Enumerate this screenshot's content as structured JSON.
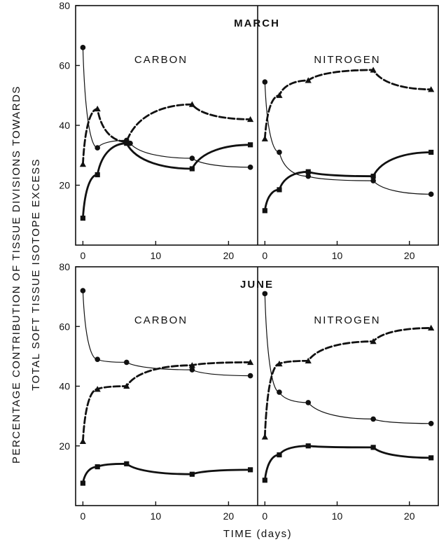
{
  "ylabel_line1": "PERCENTAGE CONTRIBUTION OF TISSUE DIVISIONS TOWARDS",
  "ylabel_line2": "TOTAL SOFT TISSUE ISOTOPE EXCESS",
  "xlabel": "TIME (days)",
  "chart_data": [
    {
      "type": "scatter",
      "title": "MARCH",
      "subtitle": "CARBON",
      "xlabel": "TIME (days)",
      "ylabel": "PERCENTAGE CONTRIBUTION OF TISSUE DIVISIONS TOWARDS TOTAL SOFT TISSUE ISOTOPE EXCESS",
      "xlim": [
        -1,
        24
      ],
      "ylim": [
        0,
        80
      ],
      "x_ticks": [
        0,
        10,
        20
      ],
      "y_ticks": [
        20,
        40,
        60,
        80
      ],
      "series": [
        {
          "marker": "triangle",
          "x": [
            0,
            2,
            6,
            15,
            23
          ],
          "y": [
            27,
            45.5,
            34.5,
            47,
            42
          ]
        },
        {
          "marker": "circle",
          "x": [
            0,
            2,
            6,
            6.5,
            15,
            23
          ],
          "y": [
            66,
            32.5,
            35,
            34,
            29,
            26
          ]
        },
        {
          "marker": "square",
          "x": [
            0,
            2,
            6,
            15,
            23
          ],
          "y": [
            9,
            23.5,
            34,
            25.5,
            33.5
          ]
        }
      ]
    },
    {
      "type": "scatter",
      "title": "MARCH",
      "subtitle": "NITROGEN",
      "xlim": [
        -1,
        24
      ],
      "ylim": [
        0,
        80
      ],
      "x_ticks": [
        0,
        10,
        20
      ],
      "y_ticks": [
        20,
        40,
        60,
        80
      ],
      "series": [
        {
          "marker": "triangle",
          "x": [
            0,
            2,
            6,
            15,
            23
          ],
          "y": [
            35.5,
            50,
            55,
            58.5,
            52
          ]
        },
        {
          "marker": "circle",
          "x": [
            0,
            2,
            6,
            15,
            23
          ],
          "y": [
            54.5,
            31,
            23,
            21.5,
            17
          ]
        },
        {
          "marker": "square",
          "x": [
            0,
            2,
            6,
            15,
            23
          ],
          "y": [
            11.5,
            18.5,
            24.5,
            23,
            31
          ]
        }
      ]
    },
    {
      "type": "scatter",
      "title": "JUNE",
      "subtitle": "CARBON",
      "xlim": [
        -1,
        24
      ],
      "ylim": [
        0,
        80
      ],
      "x_ticks": [
        0,
        10,
        20
      ],
      "y_ticks": [
        20,
        40,
        60,
        80
      ],
      "series": [
        {
          "marker": "triangle",
          "x": [
            0,
            2,
            6,
            15,
            23
          ],
          "y": [
            21.5,
            39,
            40,
            47,
            48
          ]
        },
        {
          "marker": "circle",
          "x": [
            0,
            2,
            6,
            15,
            23
          ],
          "y": [
            72,
            49,
            48,
            45.5,
            43.5
          ]
        },
        {
          "marker": "square",
          "x": [
            0,
            2,
            6,
            15,
            23
          ],
          "y": [
            7.5,
            13,
            14,
            10.5,
            12
          ]
        }
      ]
    },
    {
      "type": "scatter",
      "title": "JUNE",
      "subtitle": "NITROGEN",
      "xlim": [
        -1,
        24
      ],
      "ylim": [
        0,
        80
      ],
      "x_ticks": [
        0,
        10,
        20
      ],
      "y_ticks": [
        20,
        40,
        60,
        80
      ],
      "series": [
        {
          "marker": "triangle",
          "x": [
            0,
            2,
            6,
            15,
            23
          ],
          "y": [
            23,
            47.5,
            48.5,
            55,
            59.5
          ]
        },
        {
          "marker": "circle",
          "x": [
            0,
            2,
            6,
            15,
            23
          ],
          "y": [
            71,
            38,
            34.5,
            29,
            27.5
          ]
        },
        {
          "marker": "square",
          "x": [
            0,
            2,
            6,
            15,
            23
          ],
          "y": [
            8.5,
            17,
            20,
            19.5,
            16
          ]
        }
      ]
    }
  ]
}
